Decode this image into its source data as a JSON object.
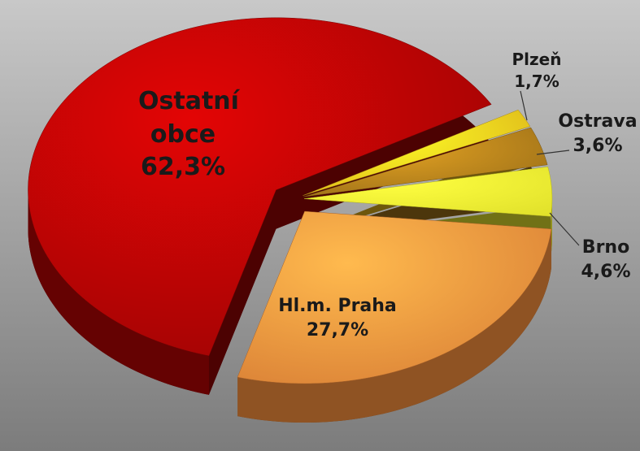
{
  "chart_data": {
    "type": "pie",
    "categories": [
      "Plzeň",
      "Ostrava",
      "Brno",
      "Hl.m. Praha",
      "Ostatní obce"
    ],
    "values": [
      1.7,
      3.6,
      4.6,
      27.7,
      62.3
    ],
    "value_labels": [
      "1,7%",
      "3,6%",
      "4,6%",
      "27,7%",
      "62,3%"
    ],
    "colors": [
      "#f2c21c",
      "#a8781a",
      "#fafa30",
      "#ef8a3a",
      "#a80404"
    ]
  }
}
